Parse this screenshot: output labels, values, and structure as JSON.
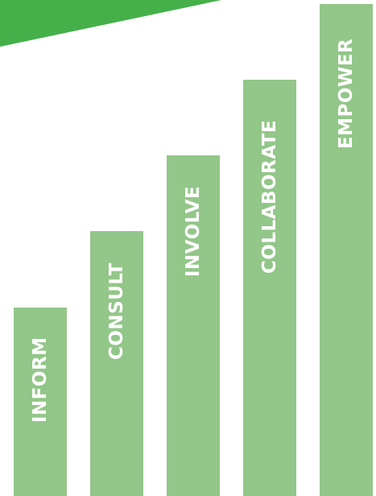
{
  "colors": {
    "bar": "#93c689",
    "banner": "#45b04a",
    "label": "#ffffff"
  },
  "levels": [
    {
      "label": "INFORM",
      "rank": 1
    },
    {
      "label": "CONSULT",
      "rank": 2
    },
    {
      "label": "INVOLVE",
      "rank": 3
    },
    {
      "label": "COLLABORATE",
      "rank": 4
    },
    {
      "label": "EMPOWER",
      "rank": 5
    }
  ]
}
